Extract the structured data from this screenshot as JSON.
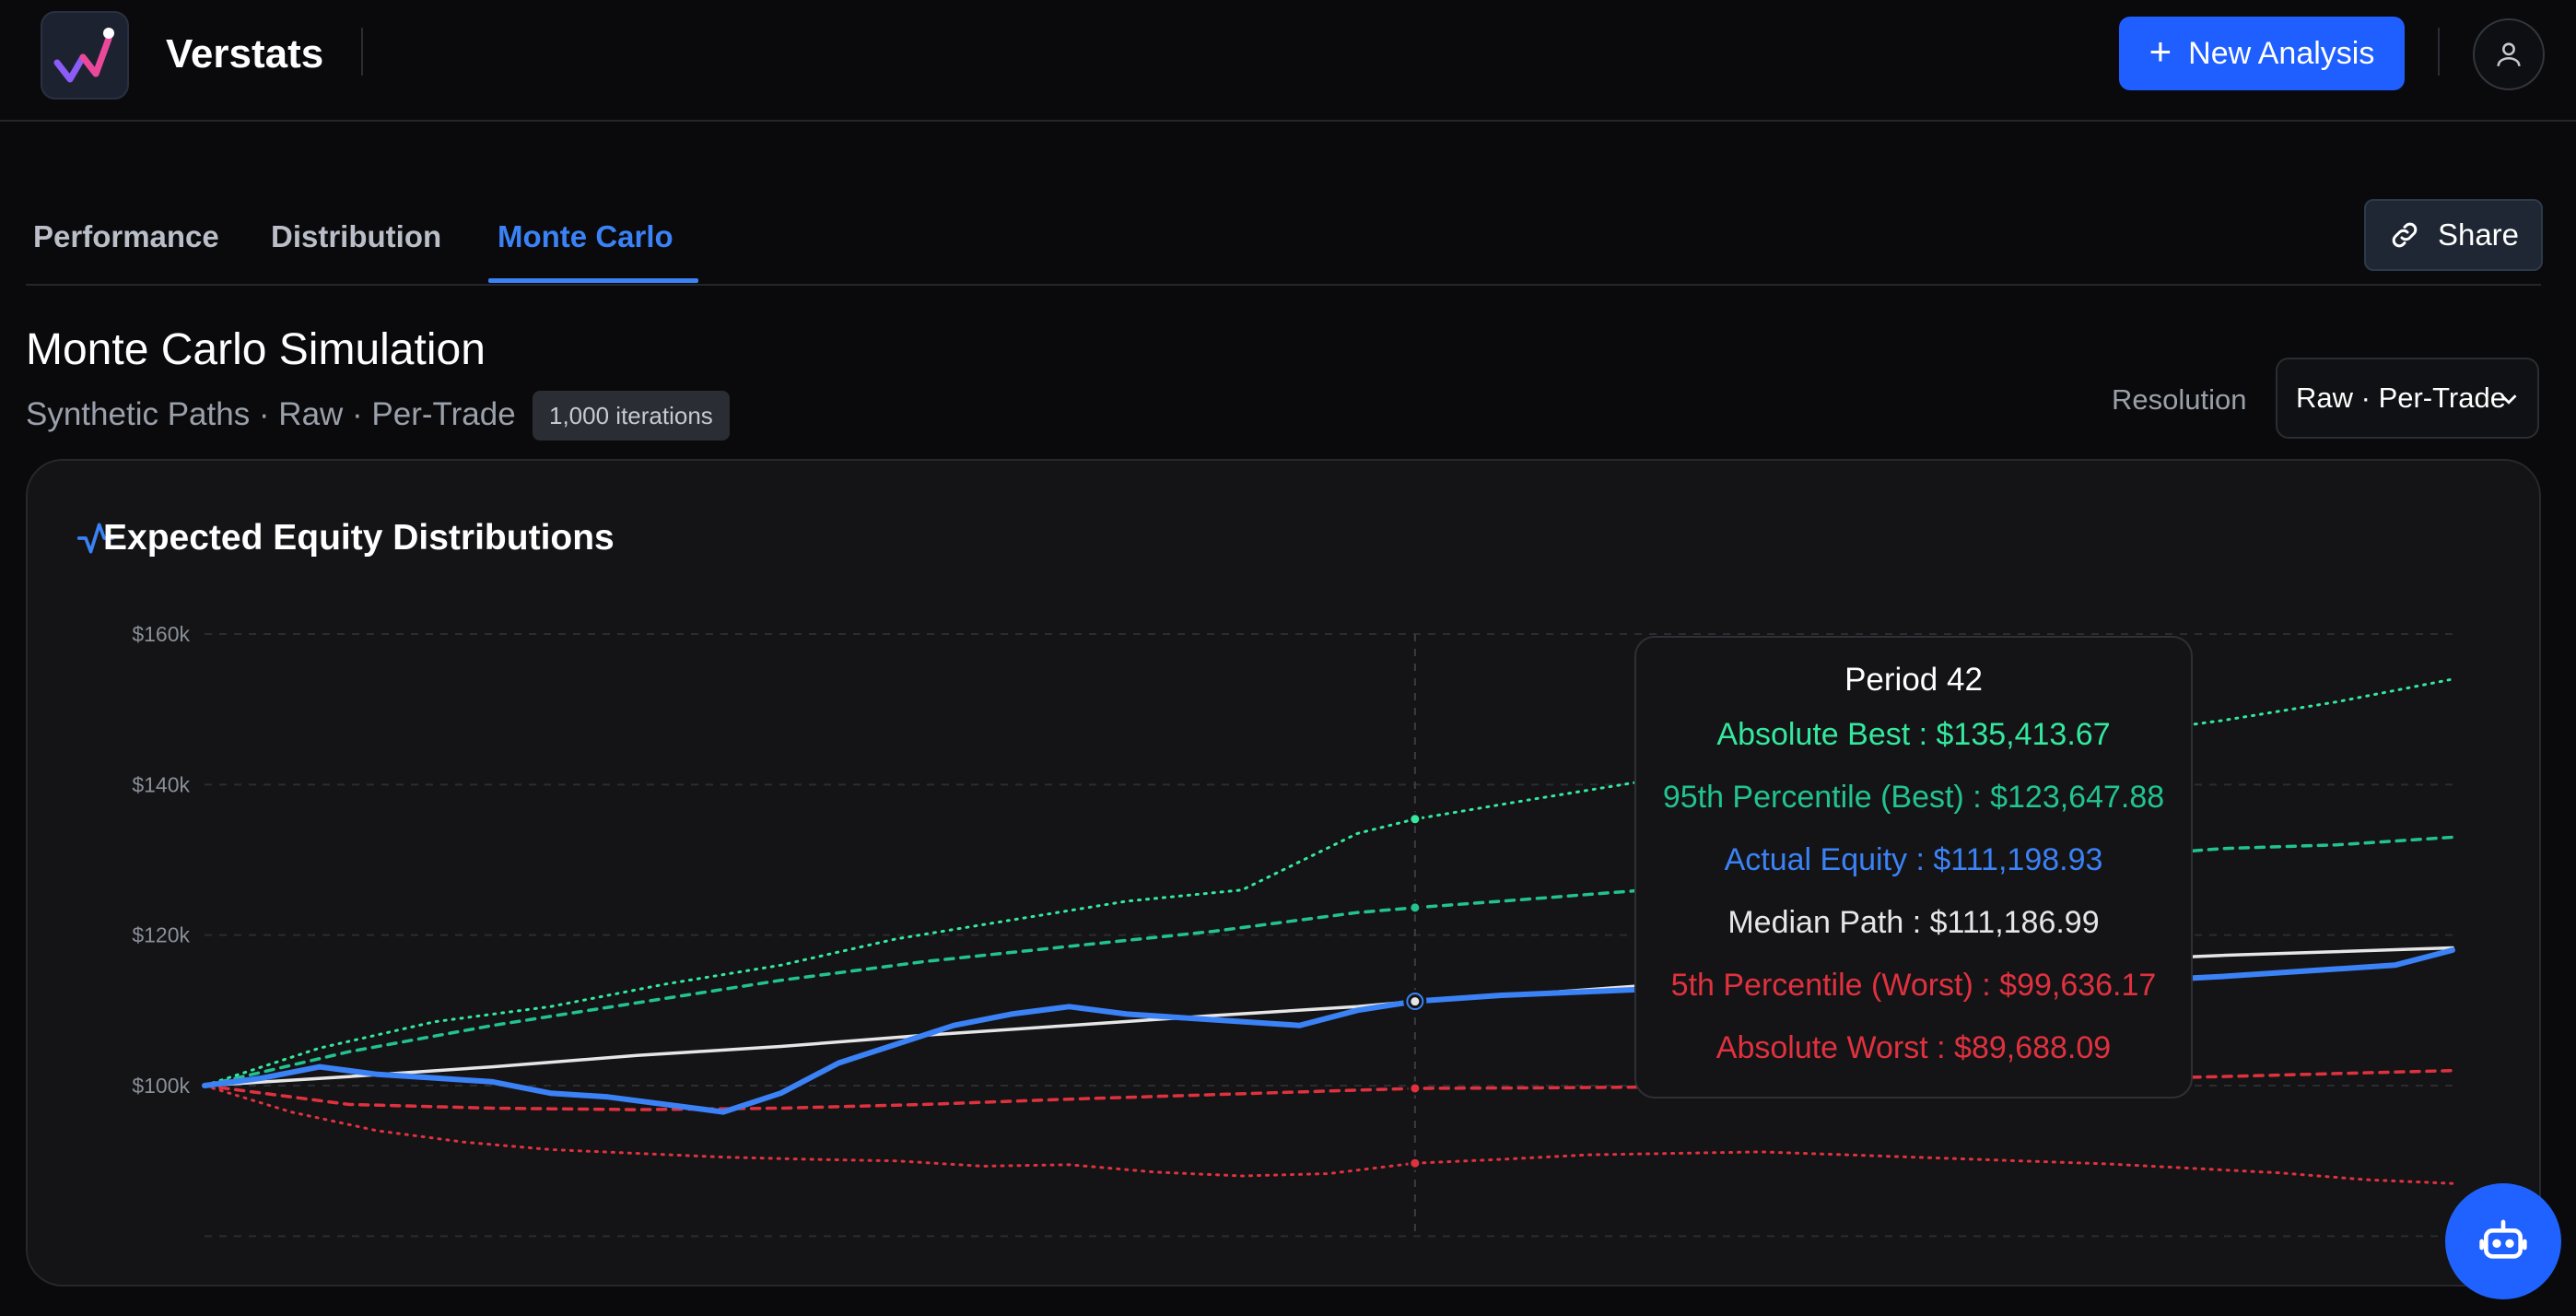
{
  "app": {
    "name": "Verstats"
  },
  "header": {
    "new_button_label": "New Analysis",
    "icons": {
      "logo": "chart-logo-icon",
      "plus": "plus-icon",
      "user": "user-icon"
    }
  },
  "tabs": [
    {
      "label": "Performance",
      "active": false
    },
    {
      "label": "Distribution",
      "active": false
    },
    {
      "label": "Monte Carlo",
      "active": true
    }
  ],
  "share_label": "Share",
  "page": {
    "title": "Monte Carlo Simulation",
    "subtitle": "Synthetic Paths · Raw · Per-Trade",
    "badge": "1,000 iterations",
    "resolution_label": "Resolution",
    "resolution_value": "Raw · Per-Trade"
  },
  "card": {
    "title": "Expected Equity Distributions"
  },
  "tooltip": {
    "title": "Period 42",
    "rows": [
      {
        "label": "Absolute Best : $135,413.67",
        "color": "#34e89e"
      },
      {
        "label": "95th Percentile (Best) : $123,647.88",
        "color": "#22c38e"
      },
      {
        "label": "Actual Equity : $111,198.93",
        "color": "#3b82f6"
      },
      {
        "label": "Median Path : $111,186.99",
        "color": "#e6e6e6"
      },
      {
        "label": "5th Percentile (Worst) : $99,636.17",
        "color": "#e0313f"
      },
      {
        "label": "Absolute Worst : $89,688.09",
        "color": "#e0313f"
      }
    ]
  },
  "colors": {
    "accent": "#1f5eff",
    "best": "#34e89e",
    "p95": "#22c38e",
    "actual": "#3b82f6",
    "median": "#e6e6e6",
    "worst": "#e0313f"
  },
  "chart_data": {
    "type": "line",
    "ylim": [
      80000,
      160000
    ],
    "y_ticks": [
      "$160k",
      "$140k",
      "$120k",
      "$100k"
    ],
    "y_tick_values": [
      160000,
      140000,
      120000,
      100000
    ],
    "x_range": [
      0,
      78
    ],
    "hover_period": 42,
    "series": [
      {
        "name": "Absolute Best",
        "style": "dotted",
        "color": "#34e89e",
        "points": [
          [
            0,
            100000
          ],
          [
            4,
            105000
          ],
          [
            8,
            108500
          ],
          [
            12,
            110500
          ],
          [
            16,
            113500
          ],
          [
            20,
            116000
          ],
          [
            24,
            119500
          ],
          [
            28,
            122000
          ],
          [
            32,
            124500
          ],
          [
            36,
            126000
          ],
          [
            40,
            133500
          ],
          [
            42,
            135414
          ],
          [
            46,
            138000
          ],
          [
            50,
            140500
          ],
          [
            55,
            142500
          ],
          [
            60,
            144500
          ],
          [
            65,
            146000
          ],
          [
            70,
            148500
          ],
          [
            74,
            151000
          ],
          [
            78,
            154000
          ]
        ]
      },
      {
        "name": "95th Percentile (Best)",
        "style": "dashed",
        "color": "#22c38e",
        "points": [
          [
            0,
            100000
          ],
          [
            5,
            104500
          ],
          [
            10,
            108000
          ],
          [
            15,
            111000
          ],
          [
            20,
            114000
          ],
          [
            25,
            116500
          ],
          [
            30,
            118500
          ],
          [
            35,
            120500
          ],
          [
            40,
            123000
          ],
          [
            42,
            123648
          ],
          [
            46,
            124800
          ],
          [
            50,
            126000
          ],
          [
            55,
            127500
          ],
          [
            60,
            129000
          ],
          [
            65,
            130000
          ],
          [
            70,
            131500
          ],
          [
            74,
            132000
          ],
          [
            78,
            133000
          ]
        ]
      },
      {
        "name": "Actual Equity",
        "style": "solid",
        "color": "#3b82f6",
        "points": [
          [
            0,
            100000
          ],
          [
            2,
            101000
          ],
          [
            4,
            102500
          ],
          [
            6,
            101500
          ],
          [
            8,
            101000
          ],
          [
            10,
            100500
          ],
          [
            12,
            99000
          ],
          [
            14,
            98500
          ],
          [
            17,
            97000
          ],
          [
            18,
            96500
          ],
          [
            20,
            99000
          ],
          [
            22,
            103000
          ],
          [
            24,
            105500
          ],
          [
            26,
            108000
          ],
          [
            28,
            109500
          ],
          [
            30,
            110500
          ],
          [
            32,
            109500
          ],
          [
            34,
            109000
          ],
          [
            36,
            108500
          ],
          [
            38,
            108000
          ],
          [
            40,
            110000
          ],
          [
            42,
            111199
          ],
          [
            45,
            112000
          ],
          [
            50,
            112800
          ],
          [
            55,
            113500
          ],
          [
            60,
            113800
          ],
          [
            65,
            113500
          ],
          [
            70,
            114500
          ],
          [
            74,
            115500
          ],
          [
            76,
            116000
          ],
          [
            78,
            118000
          ]
        ]
      },
      {
        "name": "Median Path",
        "style": "solid",
        "color": "#e6e6e6",
        "points": [
          [
            0,
            100000
          ],
          [
            5,
            101200
          ],
          [
            10,
            102500
          ],
          [
            15,
            104000
          ],
          [
            20,
            105200
          ],
          [
            25,
            106700
          ],
          [
            30,
            108000
          ],
          [
            35,
            109300
          ],
          [
            40,
            110500
          ],
          [
            42,
            111187
          ],
          [
            46,
            112200
          ],
          [
            50,
            113300
          ],
          [
            55,
            114500
          ],
          [
            60,
            115500
          ],
          [
            65,
            116500
          ],
          [
            70,
            117300
          ],
          [
            74,
            117800
          ],
          [
            78,
            118300
          ]
        ]
      },
      {
        "name": "5th Percentile (Worst)",
        "style": "dashed",
        "color": "#e0313f",
        "points": [
          [
            0,
            100000
          ],
          [
            5,
            97500
          ],
          [
            10,
            97000
          ],
          [
            15,
            96800
          ],
          [
            20,
            97000
          ],
          [
            25,
            97500
          ],
          [
            30,
            98200
          ],
          [
            35,
            98800
          ],
          [
            40,
            99400
          ],
          [
            42,
            99636
          ],
          [
            46,
            99700
          ],
          [
            50,
            99800
          ],
          [
            55,
            99500
          ],
          [
            60,
            100200
          ],
          [
            65,
            100800
          ],
          [
            70,
            101200
          ],
          [
            74,
            101600
          ],
          [
            78,
            102000
          ]
        ]
      },
      {
        "name": "Absolute Worst",
        "style": "dotted",
        "color": "#e0313f",
        "points": [
          [
            0,
            100000
          ],
          [
            3,
            96500
          ],
          [
            6,
            94000
          ],
          [
            9,
            92500
          ],
          [
            12,
            91500
          ],
          [
            15,
            91000
          ],
          [
            18,
            90500
          ],
          [
            21,
            90200
          ],
          [
            24,
            90000
          ],
          [
            27,
            89300
          ],
          [
            30,
            89500
          ],
          [
            33,
            88500
          ],
          [
            36,
            88000
          ],
          [
            39,
            88300
          ],
          [
            42,
            89688
          ],
          [
            45,
            90200
          ],
          [
            48,
            90800
          ],
          [
            51,
            91000
          ],
          [
            54,
            91200
          ],
          [
            57,
            90800
          ],
          [
            60,
            90400
          ],
          [
            63,
            90000
          ],
          [
            66,
            89600
          ],
          [
            69,
            89000
          ],
          [
            72,
            88400
          ],
          [
            75,
            87500
          ],
          [
            78,
            87000
          ]
        ]
      }
    ]
  }
}
